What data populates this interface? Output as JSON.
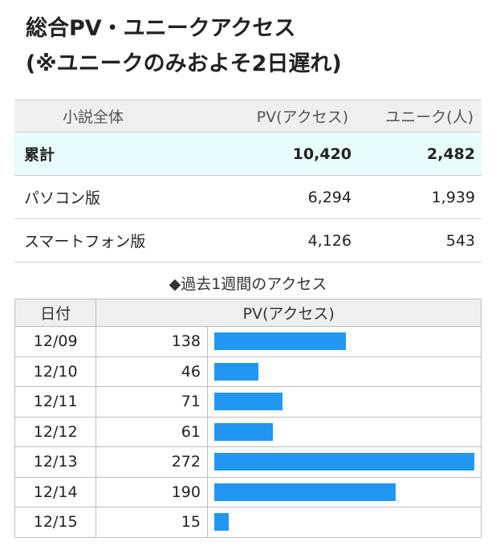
{
  "title": {
    "line1": "総合PV・ユニークアクセス",
    "line2": "(※ユニークのみおよそ2日遅れ)"
  },
  "summary": {
    "headers": [
      "小説全体",
      "PV(アクセス)",
      "ユニーク(人)"
    ],
    "rows": [
      {
        "label": "累計",
        "pv": "10,420",
        "unique": "2,482"
      },
      {
        "label": "パソコン版",
        "pv": "6,294",
        "unique": "1,939"
      },
      {
        "label": "スマートフォン版",
        "pv": "4,126",
        "unique": "543"
      }
    ]
  },
  "weekly": {
    "title": "◆過去1週間のアクセス",
    "headers": [
      "日付",
      "PV(アクセス)"
    ]
  },
  "colors": {
    "bar": "#2196f3",
    "total_row_bg": "#e8fbfd",
    "header_bg": "#efefef"
  },
  "chart_data": {
    "type": "bar",
    "title": "◆過去1週間のアクセス",
    "xlabel": "日付",
    "ylabel": "PV(アクセス)",
    "orientation": "horizontal",
    "categories": [
      "12/09",
      "12/10",
      "12/11",
      "12/12",
      "12/13",
      "12/14",
      "12/15"
    ],
    "values": [
      138,
      46,
      71,
      61,
      272,
      190,
      15
    ],
    "xlim": [
      0,
      272
    ],
    "grid": false
  }
}
